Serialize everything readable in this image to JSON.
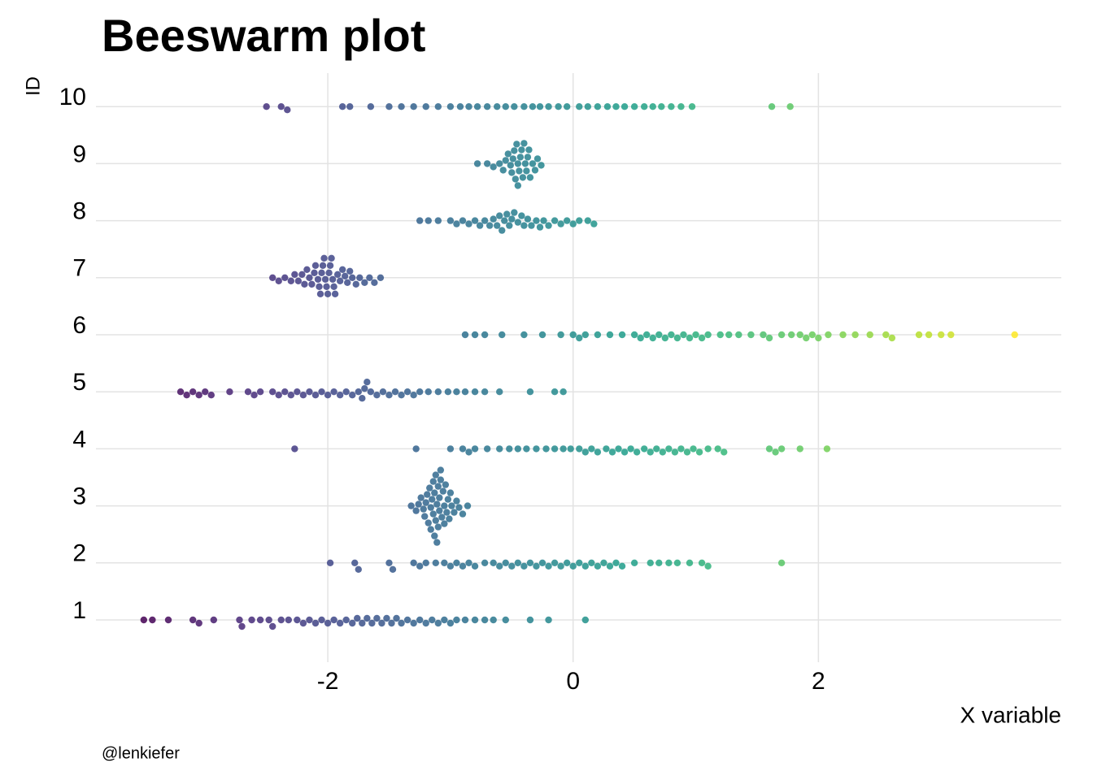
{
  "chart_data": {
    "type": "beeswarm",
    "title": "Beeswarm plot",
    "x_label": "X variable",
    "y_label": "ID",
    "caption": "@lenkiefer",
    "categories": [
      "1",
      "2",
      "3",
      "4",
      "5",
      "6",
      "7",
      "8",
      "9",
      "10"
    ],
    "values": [
      [
        -3.5,
        -3.43,
        -3.3,
        -3.1,
        -3.05,
        -2.93,
        -2.72,
        -2.7,
        -2.62,
        -2.55,
        -2.48,
        -2.45,
        -2.38,
        -2.32,
        -2.25,
        -2.2,
        -2.15,
        -2.1,
        -2.05,
        -2.0,
        -1.95,
        -1.9,
        -1.85,
        -1.8,
        -1.76,
        -1.72,
        -1.68,
        -1.64,
        -1.6,
        -1.56,
        -1.52,
        -1.48,
        -1.44,
        -1.4,
        -1.35,
        -1.3,
        -1.25,
        -1.2,
        -1.15,
        -1.1,
        -1.05,
        -1.0,
        -0.95,
        -0.88,
        -0.8,
        -0.72,
        -0.65,
        -0.55,
        -0.35,
        -0.2,
        0.1
      ],
      [
        -1.98,
        -1.78,
        -1.75,
        -1.5,
        -1.47,
        -1.3,
        -1.25,
        -1.2,
        -1.12,
        -1.05,
        -1.0,
        -0.95,
        -0.9,
        -0.85,
        -0.8,
        -0.72,
        -0.65,
        -0.6,
        -0.55,
        -0.5,
        -0.45,
        -0.4,
        -0.35,
        -0.3,
        -0.25,
        -0.2,
        -0.15,
        -0.1,
        -0.05,
        0.0,
        0.05,
        0.1,
        0.15,
        0.2,
        0.25,
        0.3,
        0.35,
        0.4,
        0.5,
        0.63,
        0.7,
        0.78,
        0.85,
        0.95,
        1.05,
        1.1,
        1.7
      ],
      [
        -1.32,
        -1.28,
        -1.26,
        -1.24,
        -1.22,
        -1.21,
        -1.2,
        -1.19,
        -1.18,
        -1.17,
        -1.16,
        -1.16,
        -1.15,
        -1.14,
        -1.14,
        -1.13,
        -1.13,
        -1.12,
        -1.12,
        -1.11,
        -1.11,
        -1.1,
        -1.1,
        -1.09,
        -1.09,
        -1.08,
        -1.08,
        -1.07,
        -1.06,
        -1.05,
        -1.05,
        -1.04,
        -1.03,
        -1.02,
        -1.01,
        -1.0,
        -0.99,
        -0.97,
        -0.95,
        -0.93,
        -0.9,
        -0.86
      ],
      [
        -2.27,
        -1.28,
        -1.0,
        -0.9,
        -0.85,
        -0.8,
        -0.7,
        -0.6,
        -0.52,
        -0.45,
        -0.38,
        -0.3,
        -0.22,
        -0.15,
        -0.08,
        -0.02,
        0.05,
        0.1,
        0.15,
        0.2,
        0.27,
        0.32,
        0.37,
        0.42,
        0.47,
        0.52,
        0.58,
        0.63,
        0.68,
        0.73,
        0.78,
        0.83,
        0.88,
        0.93,
        0.98,
        1.03,
        1.1,
        1.18,
        1.23,
        1.6,
        1.65,
        1.7,
        1.85,
        2.07
      ],
      [
        -3.2,
        -3.15,
        -3.1,
        -3.05,
        -3.0,
        -2.95,
        -2.8,
        -2.65,
        -2.6,
        -2.55,
        -2.45,
        -2.4,
        -2.35,
        -2.3,
        -2.25,
        -2.2,
        -2.15,
        -2.1,
        -2.05,
        -2.0,
        -1.95,
        -1.9,
        -1.85,
        -1.8,
        -1.75,
        -1.72,
        -1.7,
        -1.68,
        -1.65,
        -1.6,
        -1.55,
        -1.5,
        -1.45,
        -1.4,
        -1.35,
        -1.3,
        -1.25,
        -1.18,
        -1.1,
        -1.02,
        -0.95,
        -0.88,
        -0.8,
        -0.72,
        -0.6,
        -0.35,
        -0.15,
        -0.08
      ],
      [
        -0.88,
        -0.8,
        -0.72,
        -0.58,
        -0.4,
        -0.25,
        -0.1,
        0.0,
        0.05,
        0.1,
        0.2,
        0.3,
        0.4,
        0.5,
        0.55,
        0.6,
        0.65,
        0.7,
        0.75,
        0.8,
        0.85,
        0.9,
        0.95,
        1.0,
        1.05,
        1.1,
        1.2,
        1.27,
        1.35,
        1.45,
        1.55,
        1.6,
        1.7,
        1.78,
        1.85,
        1.9,
        1.95,
        2.0,
        2.08,
        2.2,
        2.3,
        2.42,
        2.55,
        2.6,
        2.82,
        2.9,
        3.0,
        3.08,
        3.6
      ],
      [
        -2.45,
        -2.4,
        -2.35,
        -2.3,
        -2.27,
        -2.24,
        -2.21,
        -2.19,
        -2.17,
        -2.15,
        -2.13,
        -2.11,
        -2.1,
        -2.08,
        -2.07,
        -2.06,
        -2.05,
        -2.04,
        -2.03,
        -2.02,
        -2.01,
        -2.0,
        -1.99,
        -1.98,
        -1.97,
        -1.96,
        -1.95,
        -1.94,
        -1.92,
        -1.9,
        -1.88,
        -1.86,
        -1.84,
        -1.82,
        -1.8,
        -1.77,
        -1.74,
        -1.7,
        -1.66,
        -1.62,
        -1.57
      ],
      [
        -1.25,
        -1.18,
        -1.1,
        -1.0,
        -0.95,
        -0.9,
        -0.85,
        -0.8,
        -0.76,
        -0.72,
        -0.68,
        -0.65,
        -0.62,
        -0.6,
        -0.58,
        -0.56,
        -0.54,
        -0.52,
        -0.5,
        -0.48,
        -0.45,
        -0.42,
        -0.4,
        -0.37,
        -0.34,
        -0.3,
        -0.27,
        -0.24,
        -0.2,
        -0.15,
        -0.1,
        -0.05,
        0.0,
        0.05,
        0.12,
        0.17
      ],
      [
        -0.78,
        -0.7,
        -0.65,
        -0.6,
        -0.57,
        -0.55,
        -0.53,
        -0.51,
        -0.5,
        -0.49,
        -0.48,
        -0.47,
        -0.46,
        -0.45,
        -0.45,
        -0.44,
        -0.43,
        -0.42,
        -0.41,
        -0.4,
        -0.39,
        -0.38,
        -0.37,
        -0.36,
        -0.35,
        -0.33,
        -0.31,
        -0.29,
        -0.26
      ],
      [
        -2.5,
        -2.38,
        -2.33,
        -1.88,
        -1.82,
        -1.65,
        -1.5,
        -1.4,
        -1.3,
        -1.2,
        -1.1,
        -1.0,
        -0.92,
        -0.85,
        -0.78,
        -0.7,
        -0.62,
        -0.55,
        -0.48,
        -0.4,
        -0.33,
        -0.27,
        -0.2,
        -0.12,
        -0.05,
        0.05,
        0.12,
        0.2,
        0.28,
        0.35,
        0.42,
        0.5,
        0.58,
        0.65,
        0.72,
        0.8,
        0.88,
        0.97,
        1.62,
        1.77
      ]
    ],
    "xlim": [
      -3.89,
      3.98
    ],
    "xticks": [
      -2,
      0,
      2
    ],
    "grid": true,
    "color_scale": [
      "#440154",
      "#482878",
      "#3e4989",
      "#31688e",
      "#26828e",
      "#1f9e89",
      "#35b779",
      "#6ece58",
      "#b5de2b",
      "#fde725"
    ]
  }
}
